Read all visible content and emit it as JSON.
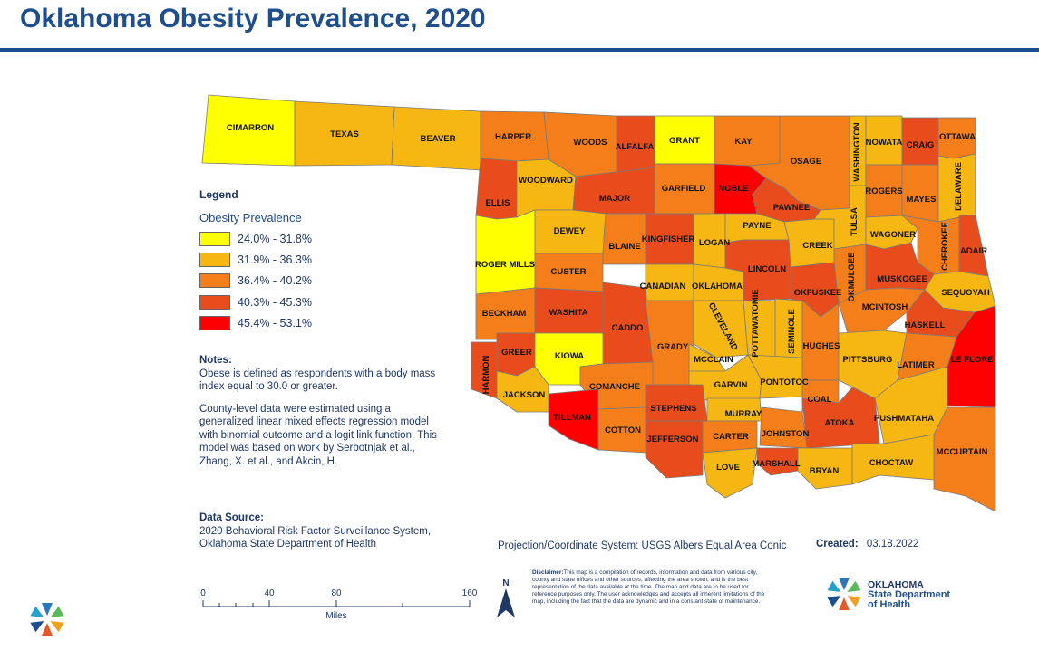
{
  "title": "Oklahoma Obesity Prevalence, 2020",
  "legend": {
    "heading": "Legend",
    "subheading": "Obesity Prevalence",
    "classes": [
      {
        "label": "24.0% - 31.8%",
        "color": "#ffff00"
      },
      {
        "label": "31.9% - 36.3%",
        "color": "#f6b712"
      },
      {
        "label": "36.4% - 40.2%",
        "color": "#f47f1a"
      },
      {
        "label": "40.3% - 45.3%",
        "color": "#e84c1c"
      },
      {
        "label": "45.4% - 53.1%",
        "color": "#ff0000"
      }
    ]
  },
  "notes": {
    "heading": "Notes:",
    "p1": "Obese is defined as respondents with a body mass index equal to 30.0 or greater.",
    "p2": "County-level data were estimated using a generalized linear mixed effects regression model with binomial outcome and a logit link function. This model was based on work by Serbotnjak et al., Zhang, X. et al., and Akcin, H."
  },
  "data_source": {
    "heading": "Data Source:",
    "line1": "2020 Behavioral Risk Factor Surveillance System,",
    "line2": "Oklahoma State Department of Health"
  },
  "scale_bar": {
    "ticks": [
      "0",
      "40",
      "80",
      "160"
    ],
    "unit": "Miles"
  },
  "projection": "Projection/Coordinate System: USGS Albers Equal Area Conic",
  "created": {
    "label": "Created:",
    "date": "03.18.2022"
  },
  "disclaimer": {
    "label": "Disclaimer:",
    "text": "This map is a compilation of records, information and data from various city, county and state offices and other sources, affecting the area shown, and is the best representation of the data available at the time. The map and data are to be used for reference purposes only. The user acknowledges and accepts all inherent limitations of the map, including the fact that the data are dynamic and in a constant state of maintenance."
  },
  "north_label": "N",
  "agency": {
    "line1": "OKLAHOMA",
    "line2": "State Department",
    "line3": "of Health"
  },
  "counties": {
    "cimarron": "CIMARRON",
    "texas": "TEXAS",
    "beaver": "BEAVER",
    "harper": "HARPER",
    "woods": "WOODS",
    "alfalfa": "ALFALFA",
    "grant": "GRANT",
    "kay": "KAY",
    "osage": "OSAGE",
    "washington": "WASHINGTON",
    "nowata": "NOWATA",
    "craig": "CRAIG",
    "ottawa": "OTTAWA",
    "ellis": "ELLIS",
    "woodward": "WOODWARD",
    "major": "MAJOR",
    "garfield": "GARFIELD",
    "noble": "NOBLE",
    "pawnee": "PAWNEE",
    "rogers": "ROGERS",
    "mayes": "MAYES",
    "delaware": "DELAWARE",
    "roger_mills": "ROGER MILLS",
    "dewey": "DEWEY",
    "blaine": "BLAINE",
    "kingfisher": "KINGFISHER",
    "logan": "LOGAN",
    "payne": "PAYNE",
    "creek": "CREEK",
    "tulsa": "TULSA",
    "wagoner": "WAGONER",
    "cherokee": "CHEROKEE",
    "adair": "ADAIR",
    "custer": "CUSTER",
    "canadian": "CANADIAN",
    "oklahoma": "OKLAHOMA",
    "lincoln": "LINCOLN",
    "okmulgee": "OKMULGEE",
    "muskogee": "MUSKOGEE",
    "okfuskee": "OKFUSKEE",
    "sequoyah": "SEQUOYAH",
    "beckham": "BECKHAM",
    "washita": "WASHITA",
    "caddo": "CADDO",
    "cleveland": "CLEVELAND",
    "pottawatomie": "POTTAWATOMIE",
    "seminole": "SEMINOLE",
    "mcintosh": "MCINTOSH",
    "haskell": "HASKELL",
    "harmon": "HARMON",
    "greer": "GREER",
    "kiowa": "KIOWA",
    "grady": "GRADY",
    "mcclain": "MCCLAIN",
    "hughes": "HUGHES",
    "pittsburg": "PITTSBURG",
    "latimer": "LATIMER",
    "le_flore": "LE FLORE",
    "jackson": "JACKSON",
    "comanche": "COMANCHE",
    "garvin": "GARVIN",
    "pontotoc": "PONTOTOC",
    "coal": "COAL",
    "tillman": "TILLMAN",
    "stephens": "STEPHENS",
    "murray": "MURRAY",
    "cotton": "COTTON",
    "jefferson": "JEFFERSON",
    "carter": "CARTER",
    "johnston": "JOHNSTON",
    "atoka": "ATOKA",
    "pushmataha": "PUSHMATAHA",
    "love": "LOVE",
    "marshall": "MARSHALL",
    "bryan": "BRYAN",
    "choctaw": "CHOCTAW",
    "mccurtain": "MCCURTAIN"
  }
}
